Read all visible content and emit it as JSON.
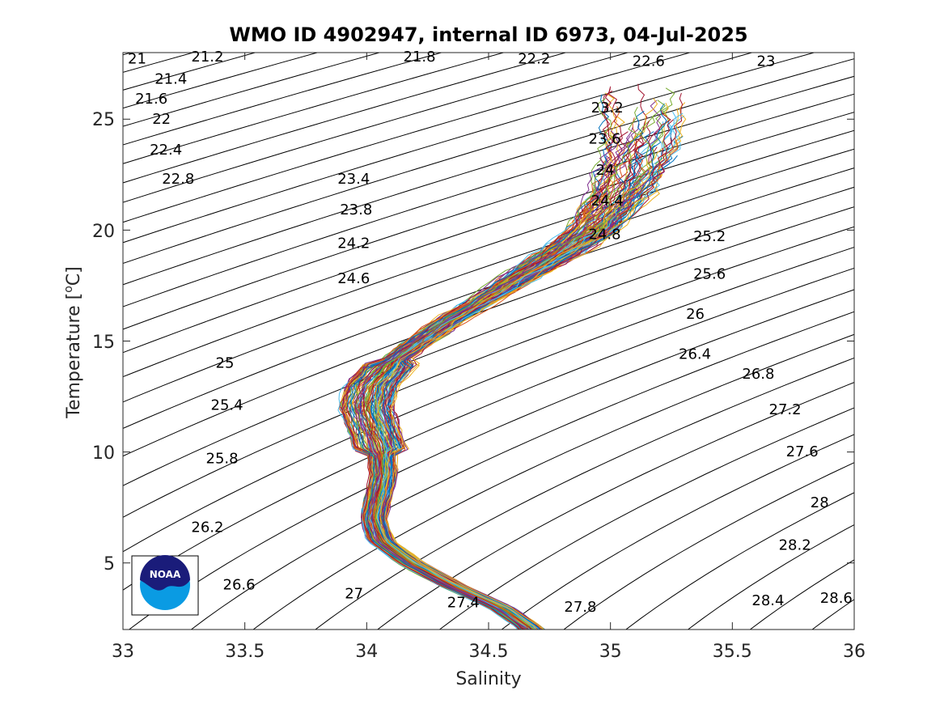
{
  "chart_data": {
    "type": "line",
    "title": "WMO ID 4902947, internal ID 6973, 04-Jul-2025",
    "xlabel": "Salinity",
    "ylabel_main": "Temperature [",
    "ylabel_sup": "o",
    "ylabel_end": "C]",
    "xlim": [
      33,
      36
    ],
    "ylim": [
      2,
      28
    ],
    "xticks": [
      33,
      33.5,
      34,
      34.5,
      35,
      35.5,
      36
    ],
    "yticks": [
      5,
      10,
      15,
      20,
      25
    ],
    "xtick_labels": [
      "33",
      "33.5",
      "34",
      "34.5",
      "35",
      "35.5",
      "36"
    ],
    "ytick_labels": [
      "5",
      "10",
      "15",
      "20",
      "25"
    ],
    "grid": false,
    "legend": "none",
    "isopycnals": {
      "levels_from": 21.0,
      "levels_to": 28.6,
      "step": 0.2,
      "labeled": [
        {
          "text": "21",
          "s": 33.02,
          "t": 27.5
        },
        {
          "text": "21.2",
          "s": 33.28,
          "t": 27.6
        },
        {
          "text": "21.4",
          "s": 33.13,
          "t": 26.6
        },
        {
          "text": "21.6",
          "s": 33.05,
          "t": 25.7
        },
        {
          "text": "21.8",
          "s": 34.15,
          "t": 27.6
        },
        {
          "text": "22",
          "s": 33.12,
          "t": 24.8
        },
        {
          "text": "22.2",
          "s": 34.62,
          "t": 27.5
        },
        {
          "text": "22.4",
          "s": 33.11,
          "t": 23.4
        },
        {
          "text": "22.6",
          "s": 35.09,
          "t": 27.4
        },
        {
          "text": "22.8",
          "s": 33.16,
          "t": 22.1
        },
        {
          "text": "23",
          "s": 35.6,
          "t": 27.4
        },
        {
          "text": "23.2",
          "s": 34.92,
          "t": 25.3
        },
        {
          "text": "23.4",
          "s": 33.88,
          "t": 22.1
        },
        {
          "text": "23.6",
          "s": 34.91,
          "t": 23.9
        },
        {
          "text": "23.8",
          "s": 33.89,
          "t": 20.7
        },
        {
          "text": "24",
          "s": 34.94,
          "t": 22.5
        },
        {
          "text": "24.2",
          "s": 33.88,
          "t": 19.2
        },
        {
          "text": "24.4",
          "s": 34.92,
          "t": 21.1
        },
        {
          "text": "24.6",
          "s": 33.88,
          "t": 17.6
        },
        {
          "text": "24.8",
          "s": 34.91,
          "t": 19.6
        },
        {
          "text": "25",
          "s": 33.38,
          "t": 13.8
        },
        {
          "text": "25.2",
          "s": 35.34,
          "t": 19.5
        },
        {
          "text": "25.4",
          "s": 33.36,
          "t": 11.9
        },
        {
          "text": "25.6",
          "s": 35.34,
          "t": 17.8
        },
        {
          "text": "25.8",
          "s": 33.34,
          "t": 9.5
        },
        {
          "text": "26",
          "s": 35.31,
          "t": 16.0
        },
        {
          "text": "26.2",
          "s": 33.28,
          "t": 6.4
        },
        {
          "text": "26.4",
          "s": 35.28,
          "t": 14.2
        },
        {
          "text": "26.6",
          "s": 33.41,
          "t": 3.8
        },
        {
          "text": "26.8",
          "s": 35.54,
          "t": 13.3
        },
        {
          "text": "27",
          "s": 33.91,
          "t": 3.4
        },
        {
          "text": "27.2",
          "s": 35.65,
          "t": 11.7
        },
        {
          "text": "27.4",
          "s": 34.33,
          "t": 3.0
        },
        {
          "text": "27.6",
          "s": 35.72,
          "t": 9.8
        },
        {
          "text": "27.8",
          "s": 34.81,
          "t": 2.8
        },
        {
          "text": "28",
          "s": 35.82,
          "t": 7.5
        },
        {
          "text": "28.2",
          "s": 35.69,
          "t": 5.6
        },
        {
          "text": "28.4",
          "s": 35.58,
          "t": 3.1
        },
        {
          "text": "28.6",
          "s": 35.86,
          "t": 3.2
        }
      ]
    },
    "profiles_mean": {
      "t": [
        2.0,
        3.0,
        4.0,
        5.0,
        6.0,
        7.0,
        8.0,
        9.0,
        10.0,
        11.0,
        12.0,
        13.0,
        14.0,
        15.0,
        16.0,
        17.0,
        18.0,
        19.0,
        20.0,
        21.0,
        22.0,
        23.0,
        24.0,
        25.0,
        26.0
      ],
      "s": [
        34.68,
        34.55,
        34.35,
        34.18,
        34.06,
        34.03,
        34.05,
        34.07,
        34.06,
        34.03,
        34.0,
        34.02,
        34.1,
        34.22,
        34.35,
        34.5,
        34.65,
        34.8,
        34.93,
        35.0,
        35.06,
        35.1,
        35.13,
        35.15,
        35.15
      ]
    },
    "profile_count": 130,
    "profile_colors": [
      "#0072bd",
      "#d95319",
      "#edb120",
      "#7e2f8e",
      "#77ac30",
      "#4dbeee",
      "#a2142f"
    ]
  },
  "logo": {
    "text": "NOAA",
    "colors": {
      "navy": "#1a1c7a",
      "blue": "#0a9be3"
    }
  }
}
